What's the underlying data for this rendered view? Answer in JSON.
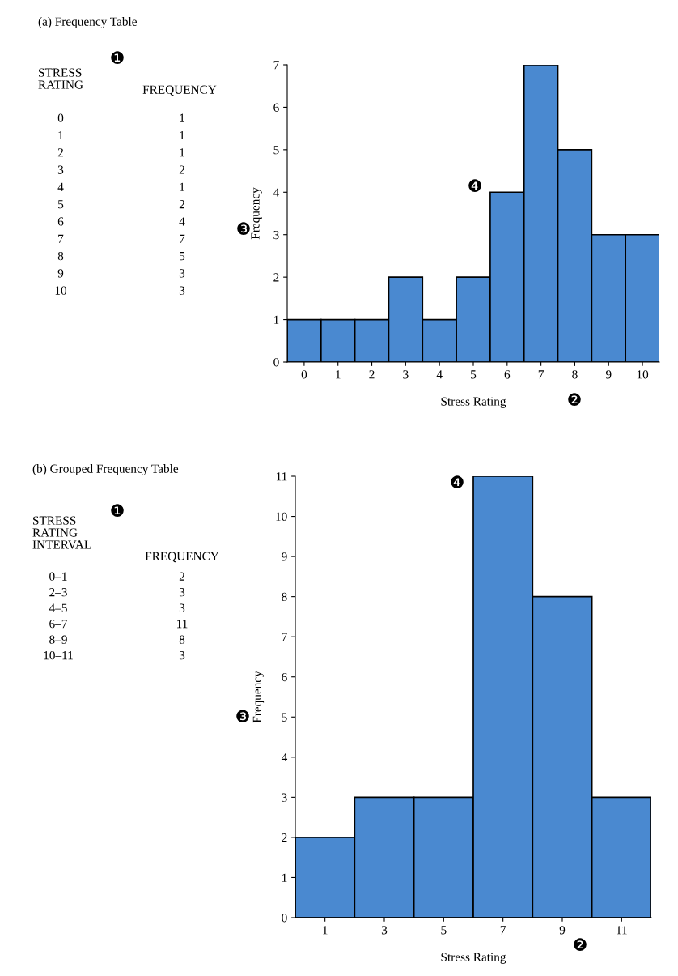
{
  "chart_data": [
    {
      "type": "histogram",
      "bins": [
        -0.5,
        0.5,
        1.5,
        2.5,
        3.5,
        4.5,
        5.5,
        6.5,
        7.5,
        8.5,
        9.5,
        10.5
      ],
      "values": [
        1,
        1,
        1,
        2,
        1,
        2,
        4,
        7,
        5,
        3,
        3
      ],
      "color": "#4a89d0",
      "xlim": [
        -0.5,
        10.5
      ],
      "xticks": [
        0,
        1,
        2,
        3,
        4,
        5,
        6,
        7,
        8,
        9,
        10
      ],
      "ylim": [
        0,
        7
      ],
      "yticks": [
        0,
        1,
        2,
        3,
        4,
        5,
        6,
        7
      ],
      "xlabel": "Stress Rating",
      "ylabel": "Frequency",
      "annotations": [
        "(a) Frequency Table",
        "❶",
        "STRESS\nRATING",
        "FREQUENCY",
        "0",
        "1",
        "2",
        "3",
        "4",
        "5",
        "6",
        "7",
        "8",
        "9",
        "10",
        "1",
        "1",
        "1",
        "2",
        "1",
        "2",
        "4",
        "7",
        "5",
        "3",
        "3",
        "❷",
        "❸",
        "❹"
      ]
    },
    {
      "type": "histogram",
      "bins": [
        0,
        2,
        4,
        6,
        8,
        10,
        12
      ],
      "values": [
        2,
        3,
        3,
        11,
        8,
        3
      ],
      "color": "#4a89d0",
      "xlim": [
        0,
        12
      ],
      "xticks": [
        1,
        3,
        5,
        7,
        9,
        11
      ],
      "ylim": [
        0,
        11
      ],
      "yticks": [
        0,
        1,
        2,
        3,
        4,
        5,
        6,
        7,
        8,
        9,
        10,
        11
      ],
      "xlabel": "Stress Rating",
      "ylabel": "Frequency",
      "annotations": [
        "(b) Grouped Frequency Table",
        "❶",
        "STRESS\nRATING\nINTERVAL",
        "FREQUENCY",
        "0–1",
        "2–3",
        "4–5",
        "6–7",
        "8–9",
        "10–11",
        "2",
        "3",
        "3",
        "11",
        "8",
        "3",
        "❷",
        "❸",
        "❹"
      ]
    }
  ]
}
